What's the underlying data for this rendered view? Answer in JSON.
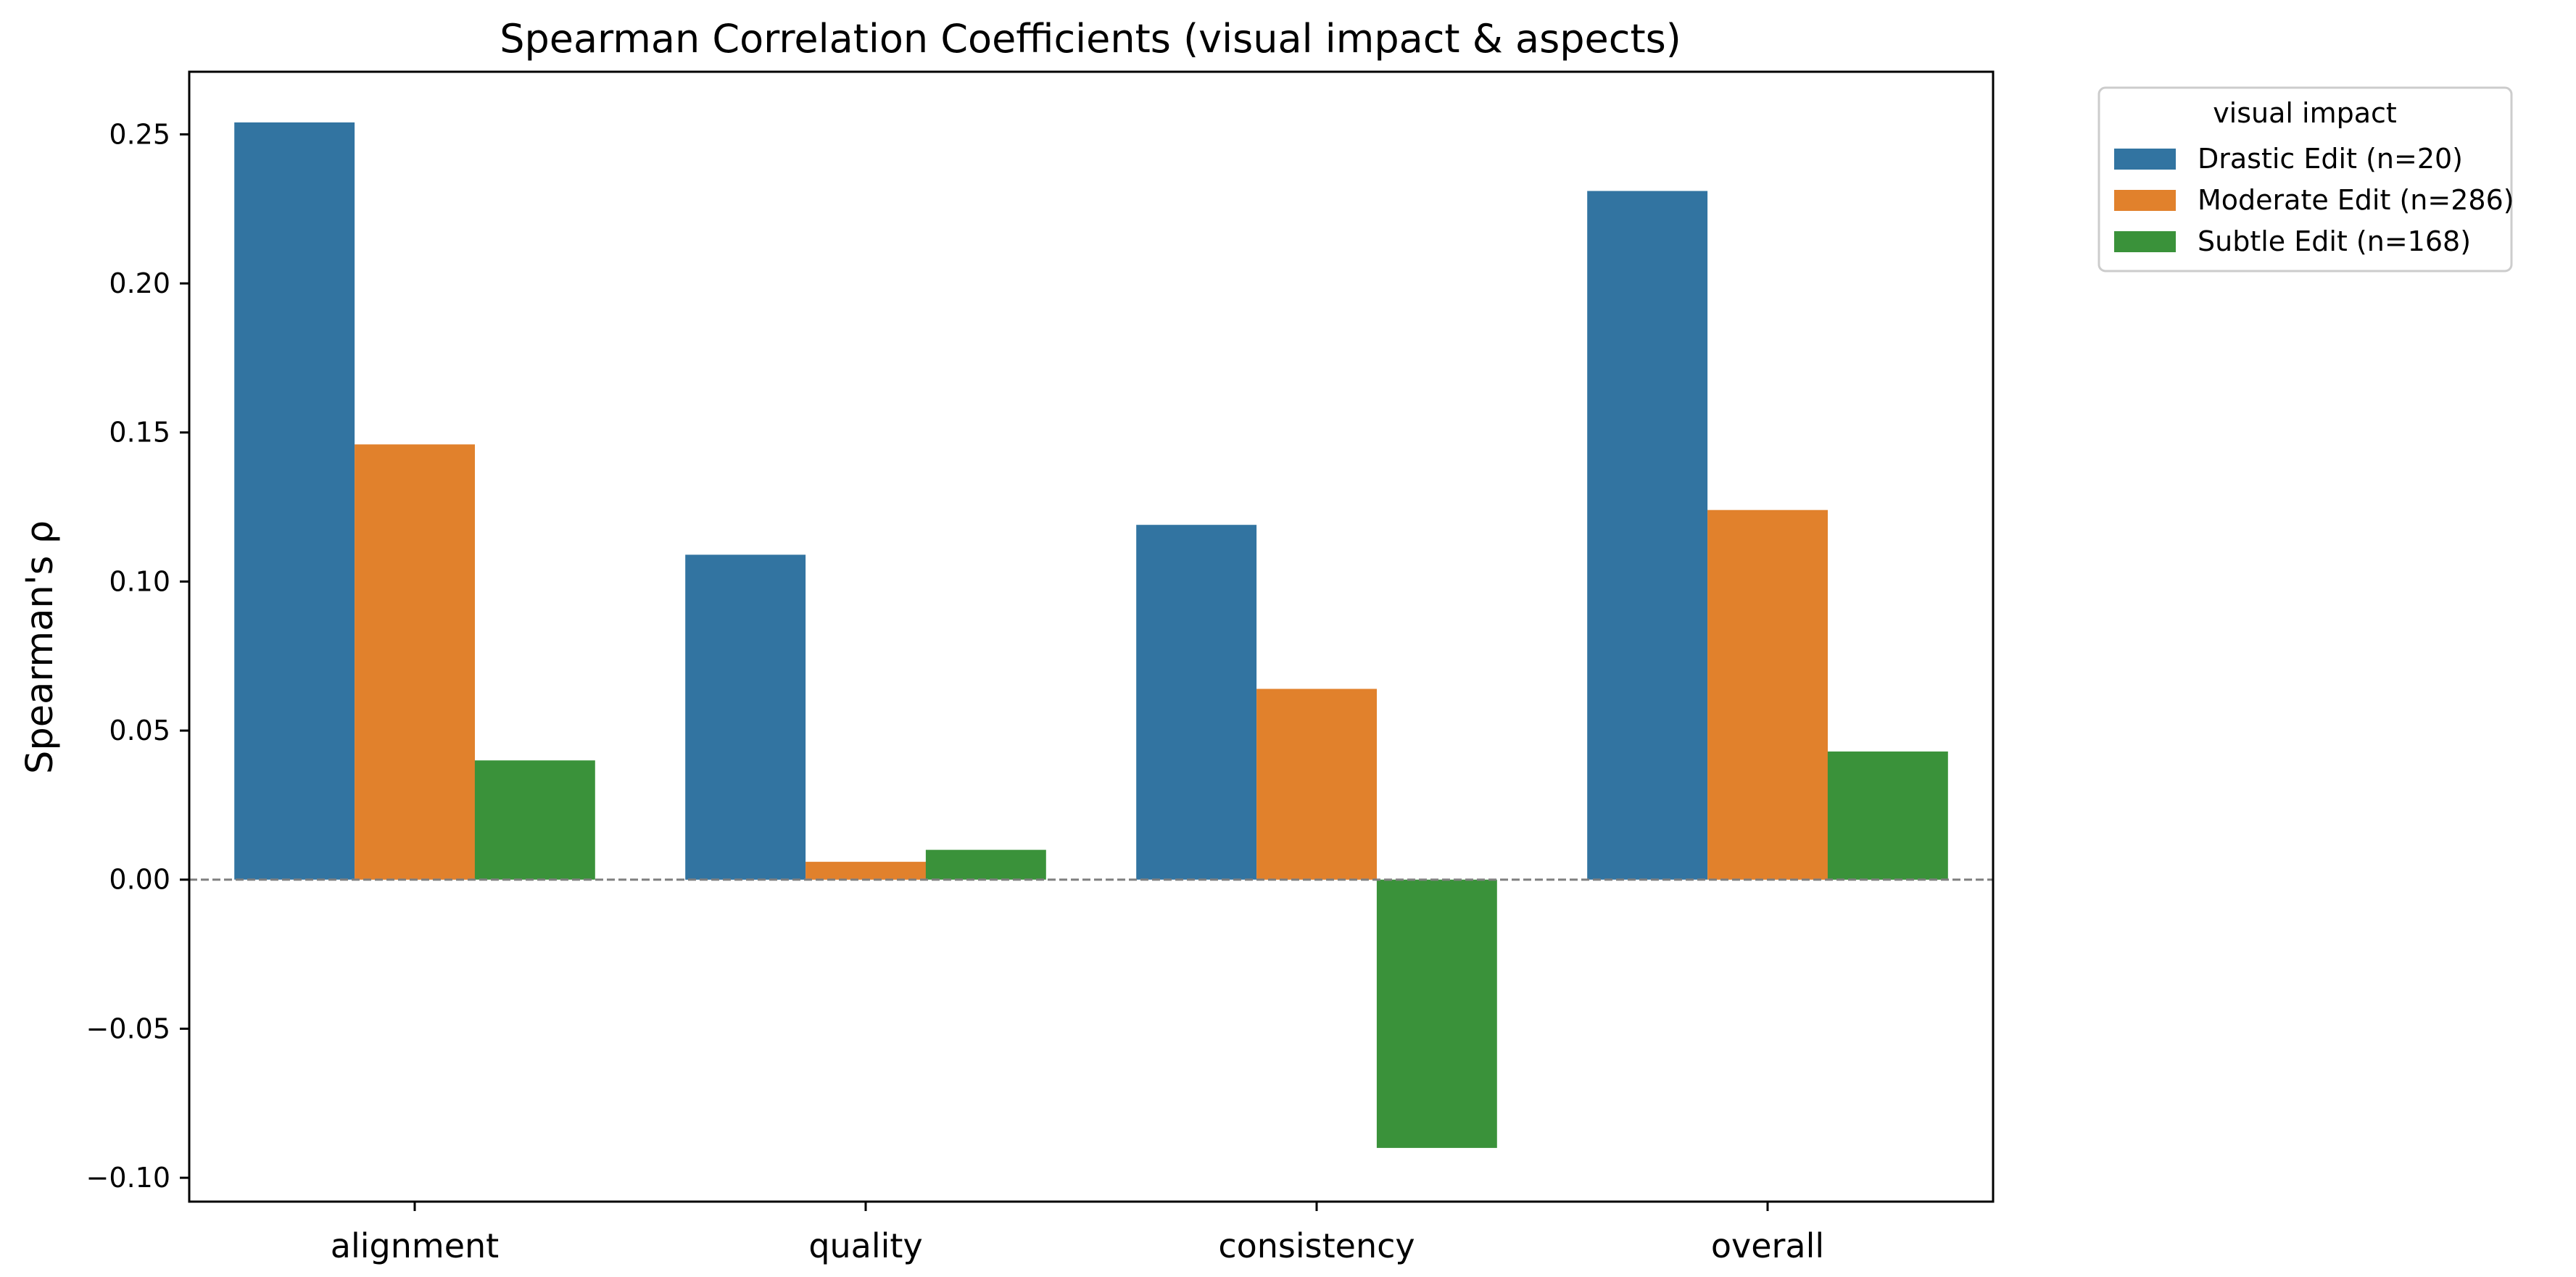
{
  "chart_data": {
    "type": "bar",
    "title": "Spearman Correlation Coefficients (visual impact & aspects)",
    "xlabel": "",
    "ylabel": "Spearman's ρ",
    "categories": [
      "alignment",
      "quality",
      "consistency",
      "overall"
    ],
    "series": [
      {
        "name": "Drastic Edit (n=20)",
        "color": "#3274a1",
        "values": [
          0.254,
          0.109,
          0.119,
          0.231
        ]
      },
      {
        "name": "Moderate Edit (n=286)",
        "color": "#e1812c",
        "values": [
          0.146,
          0.006,
          0.064,
          0.124
        ]
      },
      {
        "name": "Subtle Edit (n=168)",
        "color": "#3a923a",
        "values": [
          0.04,
          0.01,
          -0.09,
          0.043
        ]
      }
    ],
    "ylim": [
      -0.108,
      0.271
    ],
    "yticks": [
      -0.1,
      -0.05,
      0.0,
      0.05,
      0.1,
      0.15,
      0.2,
      0.25
    ],
    "ytick_labels": [
      "−0.10",
      "−0.05",
      "0.00",
      "0.05",
      "0.10",
      "0.15",
      "0.20",
      "0.25"
    ],
    "zero_line": true,
    "grid": false,
    "legend": {
      "title": "visual impact",
      "placement": "outside-top-right"
    }
  }
}
